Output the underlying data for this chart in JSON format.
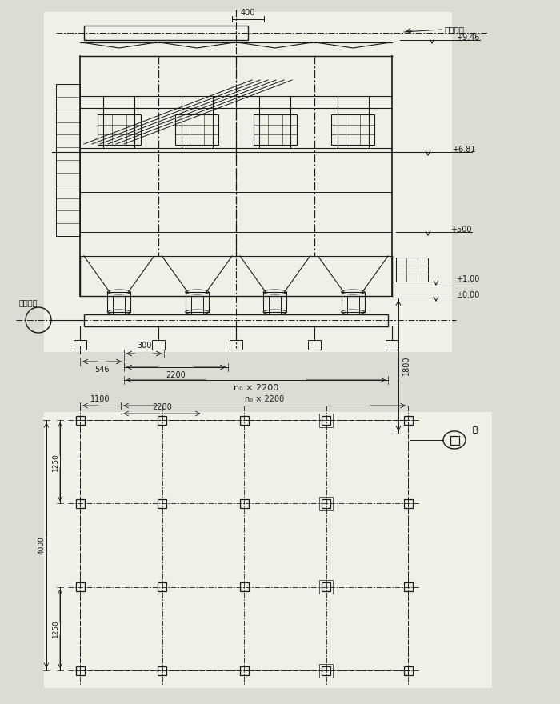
{
  "bg_color": "#e8e8e0",
  "line_color": "#1a1a1a",
  "elev_labels": [
    "+9.46",
    "+6.81",
    "+500",
    "+1.00",
    "±0.00"
  ],
  "dim_546": "546",
  "dim_300": "300",
  "dim_2200": "2200",
  "dim_n_2200": "n₀ × 2200",
  "dim_1100": "1100",
  "dim_n_2200b": "n₀ × 2200",
  "dim_2200b": "2200",
  "dim_4000": "4000",
  "dim_1250a": "1250",
  "dim_1250b": "1250",
  "dim_400": "400",
  "dim_1800": "1800",
  "label_dusty": "含尘气体",
  "label_clean": "净化气体",
  "label_B": "B"
}
